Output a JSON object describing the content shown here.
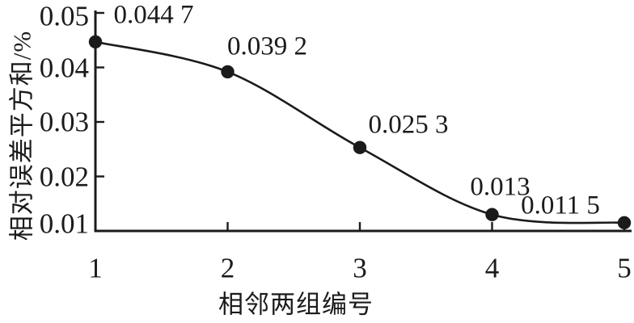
{
  "figure": {
    "background": "#ffffff",
    "ink_color": "#1b1b1b"
  },
  "chart_data": {
    "type": "line",
    "title": "",
    "xlabel": "相邻两组编号",
    "ylabel": "相对误差平方和/%",
    "x": [
      1,
      2,
      3,
      4,
      5
    ],
    "values": [
      0.0447,
      0.0392,
      0.0253,
      0.013,
      0.0115
    ],
    "point_labels": [
      "0.044 7",
      "0.039 2",
      "0.025 3",
      "0.013",
      "0.011 5"
    ],
    "x_tick_labels": [
      "1",
      "2",
      "3",
      "4",
      "5"
    ],
    "y_tick_values": [
      0.05,
      0.04,
      0.03,
      0.02,
      0.01
    ],
    "y_tick_labels": [
      "0.05",
      "0.04",
      "0.03",
      "0.02",
      "0.01"
    ],
    "xlim": [
      1,
      5
    ],
    "ylim": [
      0.01,
      0.05
    ],
    "grid": false,
    "legend_position": "none",
    "marker": "filled-circle",
    "line_color": "#1b1b1b",
    "marker_color": "#1b1b1b"
  }
}
